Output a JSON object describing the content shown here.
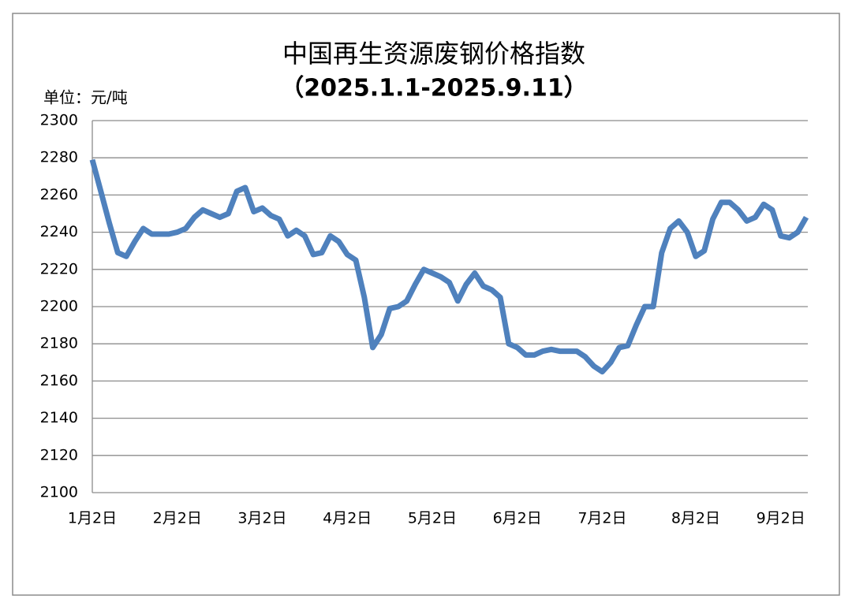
{
  "chart_data": {
    "type": "line",
    "title": "中国再生资源废钢价格指数",
    "subtitle": "（2025.1.1-2025.9.11）",
    "y_label": "单位：元/吨",
    "categories": [
      "1月2日",
      null,
      null,
      null,
      null,
      null,
      null,
      null,
      null,
      null,
      "2月2日",
      null,
      null,
      null,
      null,
      null,
      null,
      null,
      null,
      null,
      "3月2日",
      null,
      null,
      null,
      null,
      null,
      null,
      null,
      null,
      null,
      "4月2日",
      null,
      null,
      null,
      null,
      null,
      null,
      null,
      null,
      null,
      "5月2日",
      null,
      null,
      null,
      null,
      null,
      null,
      null,
      null,
      null,
      "6月2日",
      null,
      null,
      null,
      null,
      null,
      null,
      null,
      null,
      null,
      "7月2日",
      null,
      null,
      null,
      null,
      null,
      null,
      null,
      null,
      null,
      null,
      "8月2日",
      null,
      null,
      null,
      null,
      null,
      null,
      null,
      null,
      null,
      "9月2日",
      null,
      null,
      null
    ],
    "values": [
      2279,
      2262,
      2245,
      2229,
      2227,
      2235,
      2242,
      2239,
      2239,
      2239,
      2240,
      2242,
      2248,
      2252,
      2250,
      2248,
      2250,
      2262,
      2264,
      2251,
      2253,
      2249,
      2247,
      2238,
      2241,
      2238,
      2228,
      2229,
      2238,
      2235,
      2228,
      2225,
      2205,
      2178,
      2185,
      2199,
      2200,
      2203,
      2212,
      2220,
      2218,
      2216,
      2213,
      2203,
      2212,
      2218,
      2211,
      2209,
      2205,
      2180,
      2178,
      2174,
      2174,
      2176,
      2177,
      2176,
      2176,
      2176,
      2173,
      2168,
      2165,
      2170,
      2178,
      2179,
      2190,
      2200,
      2200,
      2229,
      2242,
      2246,
      2240,
      2227,
      2230,
      2247,
      2256,
      2256,
      2252,
      2246,
      2248,
      2255,
      2252,
      2238,
      2237,
      2240,
      2248
    ],
    "color": "#4f81bd",
    "ylim": [
      2100,
      2300
    ],
    "yticks": [
      2100,
      2120,
      2140,
      2160,
      2180,
      2200,
      2220,
      2240,
      2260,
      2280,
      2300
    ],
    "grid": true
  }
}
